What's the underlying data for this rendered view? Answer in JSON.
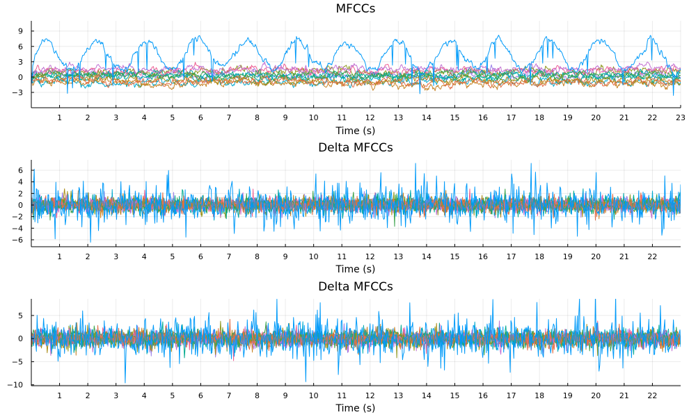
{
  "palette": [
    "#009af9",
    "#e26f46",
    "#3da44d",
    "#c271d2",
    "#ac8e18",
    "#00a9ad",
    "#ed5e93",
    "#c68225",
    "#00a98d",
    "#8e971d",
    "#00a9ce",
    "#9b7fe9"
  ],
  "chart_data": [
    {
      "type": "line",
      "title": "MFCCs",
      "xlabel": "Time (s)",
      "ylabel": "",
      "xlim": [
        0,
        23
      ],
      "ylim": [
        -6,
        11
      ],
      "xticks": [
        1,
        2,
        3,
        4,
        5,
        6,
        7,
        8,
        9,
        10,
        11,
        12,
        13,
        14,
        15,
        16,
        17,
        18,
        19,
        20,
        21,
        22,
        23
      ],
      "yticks": [
        -3,
        0,
        3,
        6,
        9
      ],
      "grid": true,
      "legend": "none",
      "n_series": 12,
      "series_summary": {
        "first_series_baseline": 4.5,
        "first_series_range": [
          -5.5,
          10
        ],
        "other_series_range": [
          -3.5,
          5.5
        ]
      }
    },
    {
      "type": "line",
      "title": "Delta MFCCs",
      "xlabel": "Time (s)",
      "ylabel": "",
      "xlim": [
        0,
        23
      ],
      "ylim": [
        -7.2,
        7.8
      ],
      "xticks": [
        1,
        2,
        3,
        4,
        5,
        6,
        7,
        8,
        9,
        10,
        11,
        12,
        13,
        14,
        15,
        16,
        17,
        18,
        19,
        20,
        21,
        22
      ],
      "yticks": [
        -6,
        -4,
        -2,
        0,
        2,
        4,
        6
      ],
      "grid": true,
      "legend": "none",
      "n_series": 12,
      "series_summary": {
        "first_series_range": [
          -6.5,
          7.3
        ],
        "other_series_range": [
          -4,
          4
        ]
      }
    },
    {
      "type": "line",
      "title": "Delta MFCCs",
      "xlabel": "Time (s)",
      "ylabel": "",
      "xlim": [
        0,
        23
      ],
      "ylim": [
        -10.2,
        8.6
      ],
      "xticks": [
        1,
        2,
        3,
        4,
        5,
        6,
        7,
        8,
        9,
        10,
        11,
        12,
        13,
        14,
        15,
        16,
        17,
        18,
        19,
        20,
        21,
        22
      ],
      "yticks": [
        -10,
        -5,
        0,
        5
      ],
      "grid": true,
      "legend": "none",
      "n_series": 12,
      "series_summary": {
        "first_series_range": [
          -9.5,
          8
        ],
        "other_series_range": [
          -7.5,
          7
        ]
      }
    }
  ]
}
